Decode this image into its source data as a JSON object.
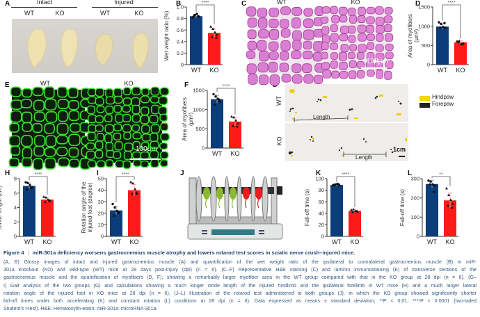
{
  "panels": {
    "A": "A",
    "B": "B",
    "C": "C",
    "D": "D",
    "E": "E",
    "F": "F",
    "G": "G",
    "H": "H",
    "I": "I",
    "J": "J",
    "K": "K",
    "L": "L"
  },
  "panel_a": {
    "intact": "Intact",
    "injured": "Injured",
    "wt1": "WT",
    "ko1": "KO",
    "wt2": "WT",
    "ko2": "KO"
  },
  "panel_c": {
    "wt": "WT",
    "ko": "KO",
    "scale": "100μm"
  },
  "panel_e": {
    "wt": "WT",
    "ko": "KO",
    "scale": "100μm"
  },
  "panel_g": {
    "wt": "WT",
    "ko": "KO",
    "length_wt": "Length",
    "length_ko": "Length",
    "scale": "1cm",
    "legend": [
      {
        "label": "Hindpaw",
        "color": "#f5d800"
      },
      {
        "label": "Forepaw",
        "color": "#222222"
      }
    ]
  },
  "chart_data": [
    {
      "panel": "B",
      "type": "bar",
      "categories": [
        "WT",
        "KO"
      ],
      "ylabel": [
        "Wet weight ratio (%)"
      ],
      "ylim": [
        0,
        1.0
      ],
      "yticks": [
        "0",
        "0.2",
        "0.4",
        "0.6",
        "0.8",
        "1.0"
      ],
      "tickvals": [
        0,
        0.2,
        0.4,
        0.6,
        0.8,
        1.0
      ],
      "series": [
        {
          "name": "WT",
          "mean": 0.84,
          "sd": 0.03,
          "points": [
            0.82,
            0.86,
            0.88,
            0.83,
            0.85,
            0.84
          ]
        },
        {
          "name": "KO",
          "mean": 0.55,
          "sd": 0.08,
          "points": [
            0.66,
            0.62,
            0.56,
            0.52,
            0.48,
            0.47
          ]
        }
      ],
      "significance": "****"
    },
    {
      "panel": "D",
      "type": "bar",
      "categories": [
        "WT",
        "KO"
      ],
      "ylabel": [
        "Area of myofibers",
        "(μm²)"
      ],
      "ylim": [
        0,
        1500
      ],
      "yticks": [
        "0",
        "500",
        "1000",
        "1500"
      ],
      "tickvals": [
        0,
        500,
        1000,
        1500
      ],
      "series": [
        {
          "name": "WT",
          "mean": 990,
          "sd": 70,
          "points": [
            1100,
            1060,
            980,
            950,
            960,
            1080
          ]
        },
        {
          "name": "KO",
          "mean": 580,
          "sd": 40,
          "points": [
            610,
            620,
            540,
            560,
            590,
            530
          ]
        }
      ],
      "significance": "****"
    },
    {
      "panel": "F",
      "type": "bar",
      "categories": [
        "WT",
        "KO"
      ],
      "ylabel": [
        "Area of myofibers",
        "(μm²)"
      ],
      "ylim": [
        0,
        1500
      ],
      "yticks": [
        "0",
        "500",
        "1000",
        "1500"
      ],
      "tickvals": [
        0,
        500,
        1000,
        1500
      ],
      "series": [
        {
          "name": "WT",
          "mean": 1270,
          "sd": 100,
          "points": [
            1400,
            1340,
            1280,
            1200,
            1130,
            1260
          ]
        },
        {
          "name": "KO",
          "mean": 690,
          "sd": 110,
          "points": [
            820,
            800,
            720,
            640,
            580,
            560
          ]
        }
      ],
      "significance": "****"
    },
    {
      "panel": "H",
      "type": "bar",
      "categories": [
        "WT",
        "KO"
      ],
      "ylabel": [
        "Stride length (cm)"
      ],
      "ylim": [
        0,
        8
      ],
      "yticks": [
        "0",
        "2",
        "4",
        "6",
        "8"
      ],
      "tickvals": [
        0,
        2,
        4,
        6,
        8
      ],
      "series": [
        {
          "name": "WT",
          "mean": 7.0,
          "sd": 0.4,
          "points": [
            7.5,
            7.4,
            7.1,
            6.8,
            6.5,
            6.7
          ]
        },
        {
          "name": "KO",
          "mean": 5.1,
          "sd": 0.3,
          "points": [
            5.5,
            5.4,
            5.1,
            4.9,
            4.8,
            5.0
          ]
        }
      ],
      "significance": "****"
    },
    {
      "panel": "I",
      "type": "bar",
      "categories": [
        "WT",
        "KO"
      ],
      "ylabel": [
        "Rotation angle of the",
        "injured foot (degree)"
      ],
      "ylim": [
        0,
        50
      ],
      "yticks": [
        "0",
        "10",
        "20",
        "30",
        "40",
        "50"
      ],
      "tickvals": [
        0,
        10,
        20,
        30,
        40,
        50
      ],
      "series": [
        {
          "name": "WT",
          "mean": 22.5,
          "sd": 3.5,
          "points": [
            28,
            25,
            22,
            20,
            18,
            21
          ]
        },
        {
          "name": "KO",
          "mean": 40,
          "sd": 5,
          "points": [
            47,
            46,
            41,
            37,
            37,
            38
          ]
        }
      ],
      "significance": "****"
    },
    {
      "panel": "K",
      "type": "bar",
      "categories": [
        "WT",
        "KO"
      ],
      "ylabel": [
        "Fall-off time (s)"
      ],
      "ylim": [
        0,
        100
      ],
      "yticks": [
        "0",
        "20",
        "40",
        "60",
        "80",
        "100"
      ],
      "tickvals": [
        0,
        20,
        40,
        60,
        80,
        100
      ],
      "series": [
        {
          "name": "WT",
          "mean": 89,
          "sd": 1.5,
          "points": [
            89,
            90,
            91,
            88,
            89,
            90
          ]
        },
        {
          "name": "KO",
          "mean": 44,
          "sd": 2,
          "points": [
            46,
            47,
            44,
            43,
            42,
            44
          ]
        }
      ],
      "significance": "****"
    },
    {
      "panel": "L",
      "type": "bar",
      "categories": [
        "WT",
        "KO"
      ],
      "ylabel": [
        "Fall-off time (s)"
      ],
      "ylim": [
        0,
        300
      ],
      "yticks": [
        "0",
        "100",
        "200",
        "300"
      ],
      "tickvals": [
        0,
        100,
        200,
        300
      ],
      "series": [
        {
          "name": "WT",
          "mean": 272,
          "sd": 20,
          "points": [
            290,
            285,
            270,
            265,
            270,
            232
          ]
        },
        {
          "name": "KO",
          "mean": 187,
          "sd": 38,
          "points": [
            250,
            215,
            190,
            170,
            160,
            150
          ]
        }
      ],
      "significance": "**"
    }
  ],
  "colors": {
    "wt": "#0a3d7a",
    "ko": "#ff1a1a",
    "wt_err": "#8fa8c8",
    "ko_err": "#ff9a9a"
  },
  "caption": {
    "figure": "Figure 4",
    "title": "miR-301a deficiency worsens gastrocnemius muscle atrophy and lowers rotarod test scores in sciatic nerve crush–injured mice.",
    "lines": [
      "(A, B) Glossy images of intact and injured gastrocnemius muscle (A) and quantification of the wet weight ratio of the ipsilateral to contralateral gastrocnemius muscle (B) in miR-",
      "301a knockout (KO) and wild-type (WT) mice at 28 days post-injury (dpi) (n = 6). (C–F) Representative H&E staining (C) and laminin immunostaining (E) of transverse sections of the",
      "gastrocnemius muscle and the quantification of myofibers (D, F), showing a remarkably larger myofiber area in the WT group compared with that in the KO group at 28 dpi (n = 6). (G–",
      "I) Gait analysis of the two groups (G) and calculations showing a much longer stride length of the injured hindlimb and the ipsilateral forelimb in WT mice (H) and a much larger lateral",
      "rotation angle of the injured foot in KO mice at 28 dpi (n = 6). (J–L) Illustration of the rotarod test administered to both groups (J), in which the KO group showed significantly shorter",
      "fall-off times under both accelerating (K) and constant rotation (L) conditions at 28 dpi (n = 6). Data expressed as means ± standard deviation; **P < 0.01, ****P < 0.0001 (two-tailed",
      "Student's t-test). H&E: Hematoxylin-eosin; miR-301a: microRNA-301a."
    ]
  }
}
